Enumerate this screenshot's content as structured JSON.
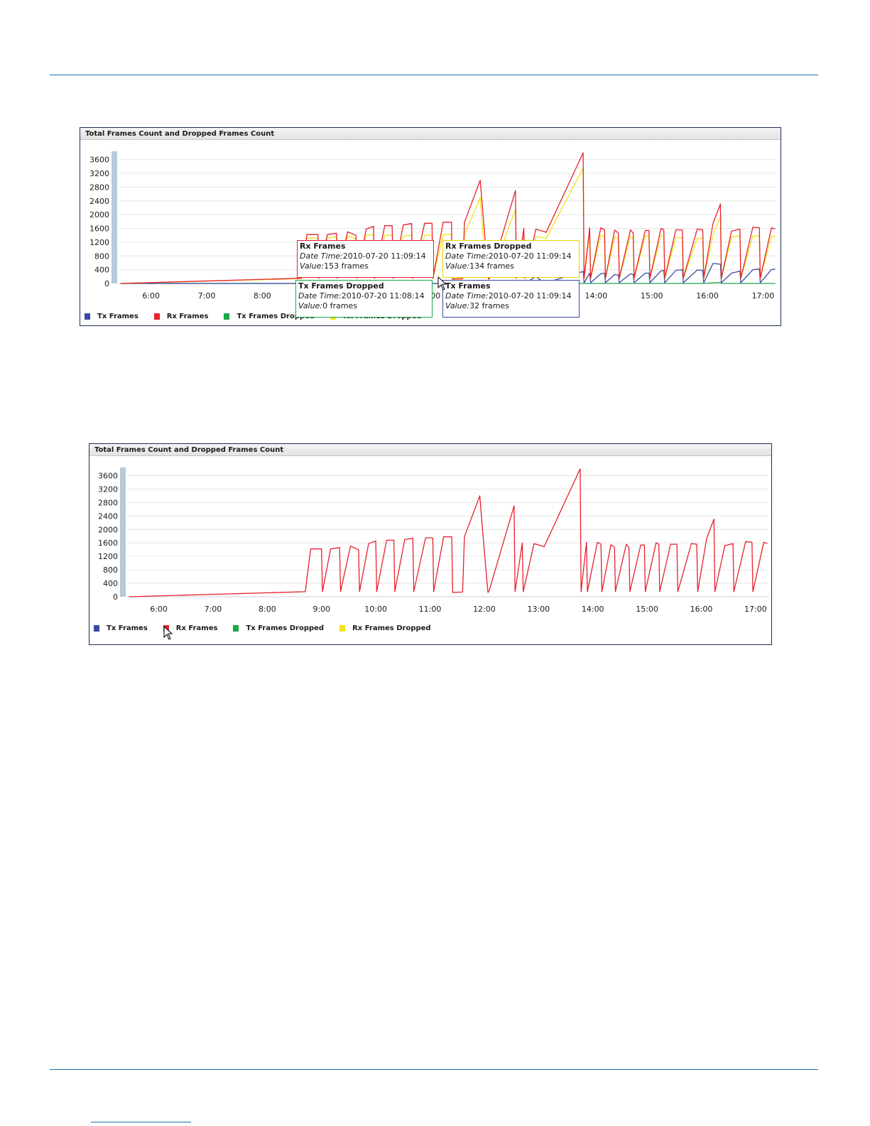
{
  "colors": {
    "tx_frames": "#3b4aa0",
    "rx_frames": "#e8202e",
    "tx_frames_dropped": "#19a84a",
    "rx_frames_dropped": "#f2e414",
    "rule": "#1f6fa8"
  },
  "chart_data": [
    {
      "type": "line",
      "title": "Total Frames Count and Dropped Frames Count",
      "x_ticks": [
        "6:00",
        "7:00",
        "8:00",
        "9:00",
        "10:00",
        "11:00",
        "12:00",
        "13:00",
        "14:00",
        "15:00",
        "16:00",
        "17:00"
      ],
      "y_ticks": [
        0,
        400,
        800,
        1200,
        1600,
        2000,
        2400,
        2800,
        3200,
        3600
      ],
      "ylim": [
        0,
        3800
      ],
      "xlim": [
        "05:25",
        "17:15"
      ],
      "grid": true,
      "legend_position": "bottom-left",
      "legend": [
        "Tx Frames",
        "Rx Frames",
        "Tx Frames Dropped",
        "Rx Frames Dropped"
      ],
      "series": [
        {
          "name": "Rx Frames",
          "color_key": "rx_frames",
          "x": [
            "05:27",
            "08:42",
            "08:48",
            "09:00",
            "09:01",
            "09:10",
            "09:20",
            "09:21",
            "09:32",
            "09:41",
            "09:42",
            "09:52",
            "10:00",
            "10:01",
            "10:12",
            "10:20",
            "10:21",
            "10:32",
            "10:41",
            "10:42",
            "10:55",
            "11:03",
            "11:04",
            "11:15",
            "11:24",
            "11:25",
            "11:36",
            "11:38",
            "11:55",
            "11:58",
            "12:04",
            "12:05",
            "12:33",
            "12:34",
            "12:42",
            "12:43",
            "12:55",
            "13:05",
            "13:06",
            "13:46",
            "13:47",
            "13:53",
            "13:54",
            "14:05",
            "14:09",
            "14:10",
            "14:20",
            "14:24",
            "14:25",
            "14:37",
            "14:40",
            "14:41",
            "14:53",
            "14:57",
            "14:58",
            "15:10",
            "15:13",
            "15:14",
            "15:26",
            "15:33",
            "15:34",
            "15:49",
            "15:55",
            "15:56",
            "16:06",
            "16:14",
            "16:15",
            "16:26",
            "16:35",
            "16:36",
            "16:49",
            "16:56",
            "16:57",
            "17:09",
            "17:13"
          ],
          "y": [
            0,
            150,
            1420,
            1420,
            150,
            1420,
            1460,
            150,
            1500,
            1400,
            150,
            1580,
            1660,
            150,
            1680,
            1680,
            150,
            1700,
            1740,
            150,
            1750,
            1750,
            150,
            1780,
            1780,
            130,
            140,
            1780,
            3000,
            2000,
            130,
            150,
            2700,
            150,
            1600,
            150,
            1580,
            1500,
            1480,
            3800,
            150,
            1620,
            150,
            1620,
            1560,
            150,
            1550,
            1460,
            150,
            1560,
            1460,
            150,
            1540,
            1540,
            150,
            1600,
            1560,
            150,
            1560,
            1560,
            150,
            1580,
            1560,
            150,
            1740,
            2310,
            150,
            1520,
            1580,
            150,
            1640,
            1620,
            150,
            1620,
            1580
          ]
        },
        {
          "name": "Rx Frames Dropped",
          "color_key": "rx_frames_dropped",
          "x": [
            "05:27",
            "08:42",
            "08:48",
            "09:00",
            "09:01",
            "09:10",
            "09:20",
            "09:21",
            "09:32",
            "09:41",
            "09:42",
            "09:52",
            "10:00",
            "10:01",
            "10:12",
            "10:20",
            "10:21",
            "10:32",
            "10:41",
            "10:42",
            "10:55",
            "11:03",
            "11:04",
            "11:15",
            "11:24",
            "11:25",
            "11:36",
            "11:38",
            "11:55",
            "11:58",
            "12:04",
            "12:05",
            "12:33",
            "12:34",
            "12:42",
            "12:43",
            "12:55",
            "13:05",
            "13:06",
            "13:46",
            "13:47",
            "13:53",
            "13:54",
            "14:05",
            "14:09",
            "14:10",
            "14:20",
            "14:24",
            "14:25",
            "14:37",
            "14:40",
            "14:41",
            "14:53",
            "14:57",
            "14:58",
            "15:10",
            "15:13",
            "15:14",
            "15:26",
            "15:33",
            "15:34",
            "15:49",
            "15:55",
            "15:56",
            "16:06",
            "16:14",
            "16:15",
            "16:26",
            "16:35",
            "16:36",
            "16:49",
            "16:56",
            "16:57",
            "17:09",
            "17:13"
          ],
          "y": [
            0,
            140,
            1320,
            1320,
            140,
            1320,
            1360,
            140,
            1380,
            1300,
            140,
            1400,
            1420,
            140,
            1400,
            1400,
            140,
            1380,
            1400,
            140,
            1400,
            1400,
            140,
            1420,
            1420,
            120,
            130,
            1420,
            2500,
            1400,
            120,
            140,
            2150,
            140,
            1380,
            140,
            1360,
            1320,
            1300,
            3350,
            140,
            1400,
            140,
            1400,
            1360,
            140,
            1350,
            1300,
            140,
            1380,
            1300,
            140,
            1380,
            1380,
            140,
            1400,
            1380,
            140,
            1340,
            1320,
            140,
            1320,
            1320,
            140,
            1400,
            1950,
            140,
            1350,
            1380,
            140,
            1380,
            1380,
            140,
            1380,
            1360
          ]
        },
        {
          "name": "Tx Frames",
          "color_key": "tx_frames",
          "x": [
            "05:27",
            "12:43",
            "12:55",
            "13:05",
            "13:06",
            "13:46",
            "13:47",
            "13:53",
            "13:54",
            "14:05",
            "14:09",
            "14:10",
            "14:20",
            "14:24",
            "14:25",
            "14:37",
            "14:40",
            "14:41",
            "14:53",
            "14:57",
            "14:58",
            "15:10",
            "15:13",
            "15:14",
            "15:26",
            "15:33",
            "15:34",
            "15:49",
            "15:55",
            "15:56",
            "16:06",
            "16:14",
            "16:15",
            "16:26",
            "16:35",
            "16:36",
            "16:49",
            "16:56",
            "16:57",
            "17:09",
            "17:13"
          ],
          "y": [
            0,
            0,
            200,
            0,
            20,
            350,
            20,
            300,
            20,
            280,
            300,
            20,
            260,
            240,
            20,
            280,
            260,
            20,
            300,
            300,
            20,
            370,
            380,
            20,
            380,
            400,
            20,
            390,
            380,
            20,
            580,
            560,
            20,
            300,
            360,
            20,
            400,
            420,
            20,
            400,
            420
          ]
        },
        {
          "name": "Tx Frames Dropped",
          "color_key": "tx_frames_dropped",
          "x": [
            "05:27",
            "15:55",
            "16:14",
            "16:15",
            "17:13"
          ],
          "y": [
            0,
            0,
            30,
            0,
            0
          ]
        }
      ],
      "tooltips": [
        {
          "series": "Rx Frames",
          "date_label": "Date Time:",
          "date": "2010-07-20 11:09:14",
          "value_label": "Value:",
          "value": "153 frames"
        },
        {
          "series": "Rx Frames Dropped",
          "date_label": "Date Time:",
          "date": "2010-07-20 11:09:14",
          "value_label": "Value:",
          "value": "134 frames"
        },
        {
          "series": "Tx Frames Dropped",
          "date_label": "Date Time:",
          "date": "2010-07-20 11:08:14",
          "value_label": "Value:",
          "value": "0 frames"
        },
        {
          "series": "Tx Frames",
          "date_label": "Date Time:",
          "date": "2010-07-20 11:09:14",
          "value_label": "Value:",
          "value": "32 frames"
        }
      ]
    },
    {
      "type": "line",
      "title": "Total Frames Count and Dropped Frames Count",
      "x_ticks": [
        "6:00",
        "7:00",
        "8:00",
        "9:00",
        "10:00",
        "11:00",
        "12:00",
        "13:00",
        "14:00",
        "15:00",
        "16:00",
        "17:00"
      ],
      "y_ticks": [
        0,
        400,
        800,
        1200,
        1600,
        2000,
        2400,
        2800,
        3200,
        3600
      ],
      "ylim": [
        0,
        3800
      ],
      "xlim": [
        "05:25",
        "17:15"
      ],
      "grid": true,
      "legend_position": "bottom-left",
      "legend": [
        "Tx Frames",
        "Rx Frames",
        "Tx Frames Dropped",
        "Rx Frames Dropped"
      ],
      "series": [
        {
          "name": "Rx Frames",
          "color_key": "rx_frames",
          "x": [
            "05:27",
            "08:42",
            "08:48",
            "09:00",
            "09:01",
            "09:10",
            "09:20",
            "09:21",
            "09:32",
            "09:41",
            "09:42",
            "09:52",
            "10:00",
            "10:01",
            "10:12",
            "10:20",
            "10:21",
            "10:32",
            "10:41",
            "10:42",
            "10:55",
            "11:03",
            "11:04",
            "11:15",
            "11:24",
            "11:25",
            "11:36",
            "11:38",
            "11:55",
            "11:58",
            "12:04",
            "12:05",
            "12:33",
            "12:34",
            "12:42",
            "12:43",
            "12:55",
            "13:05",
            "13:06",
            "13:46",
            "13:47",
            "13:53",
            "13:54",
            "14:05",
            "14:09",
            "14:10",
            "14:20",
            "14:24",
            "14:25",
            "14:37",
            "14:40",
            "14:41",
            "14:53",
            "14:57",
            "14:58",
            "15:10",
            "15:13",
            "15:14",
            "15:26",
            "15:33",
            "15:34",
            "15:49",
            "15:55",
            "15:56",
            "16:06",
            "16:14",
            "16:15",
            "16:26",
            "16:35",
            "16:36",
            "16:49",
            "16:56",
            "16:57",
            "17:09",
            "17:13"
          ],
          "y": [
            0,
            150,
            1420,
            1420,
            150,
            1420,
            1460,
            150,
            1500,
            1400,
            150,
            1580,
            1660,
            150,
            1680,
            1680,
            150,
            1700,
            1740,
            150,
            1750,
            1750,
            150,
            1780,
            1780,
            130,
            140,
            1780,
            3000,
            2000,
            130,
            150,
            2700,
            150,
            1600,
            150,
            1580,
            1500,
            1480,
            3800,
            150,
            1620,
            150,
            1620,
            1560,
            150,
            1550,
            1460,
            150,
            1560,
            1460,
            150,
            1540,
            1540,
            150,
            1600,
            1560,
            150,
            1560,
            1560,
            150,
            1580,
            1560,
            150,
            1740,
            2310,
            150,
            1520,
            1580,
            150,
            1640,
            1620,
            150,
            1620,
            1580
          ]
        }
      ]
    }
  ]
}
